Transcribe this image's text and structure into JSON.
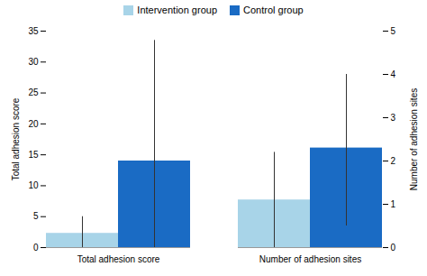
{
  "chart_data": {
    "type": "bar",
    "categories": [
      "Total adhesion score",
      "Number of adhesion sites"
    ],
    "series": [
      {
        "name": "Intervention group",
        "color": "#a8d4e8",
        "axis": "y",
        "values": [
          2.3,
          null
        ],
        "error_low": [
          2.3,
          null
        ],
        "error_high": [
          2.7,
          null
        ]
      },
      {
        "name": "Control group",
        "color": "#1a6bc4",
        "axis": "y",
        "values": [
          14.0,
          null
        ],
        "error_low": [
          14.0,
          null
        ],
        "error_high": [
          19.5,
          null
        ]
      },
      {
        "name": "Intervention group",
        "color": "#a8d4e8",
        "axis": "y2",
        "values": [
          null,
          1.1
        ],
        "error_low": [
          null,
          1.1
        ],
        "error_high": [
          null,
          1.1
        ]
      },
      {
        "name": "Control group",
        "color": "#1a6bc4",
        "axis": "y2",
        "values": [
          null,
          2.3
        ],
        "error_low": [
          null,
          1.8
        ],
        "error_high": [
          null,
          1.7
        ]
      }
    ],
    "ylabel": "Total adhesion score",
    "y2label": "Number of adhesion sites",
    "ylim": [
      0,
      35
    ],
    "yticks": [
      0,
      5,
      10,
      15,
      20,
      25,
      30,
      35
    ],
    "y2lim": [
      0,
      5
    ],
    "y2ticks": [
      0,
      1,
      2,
      3,
      4,
      5
    ],
    "grid": false,
    "legend": "upper center"
  }
}
